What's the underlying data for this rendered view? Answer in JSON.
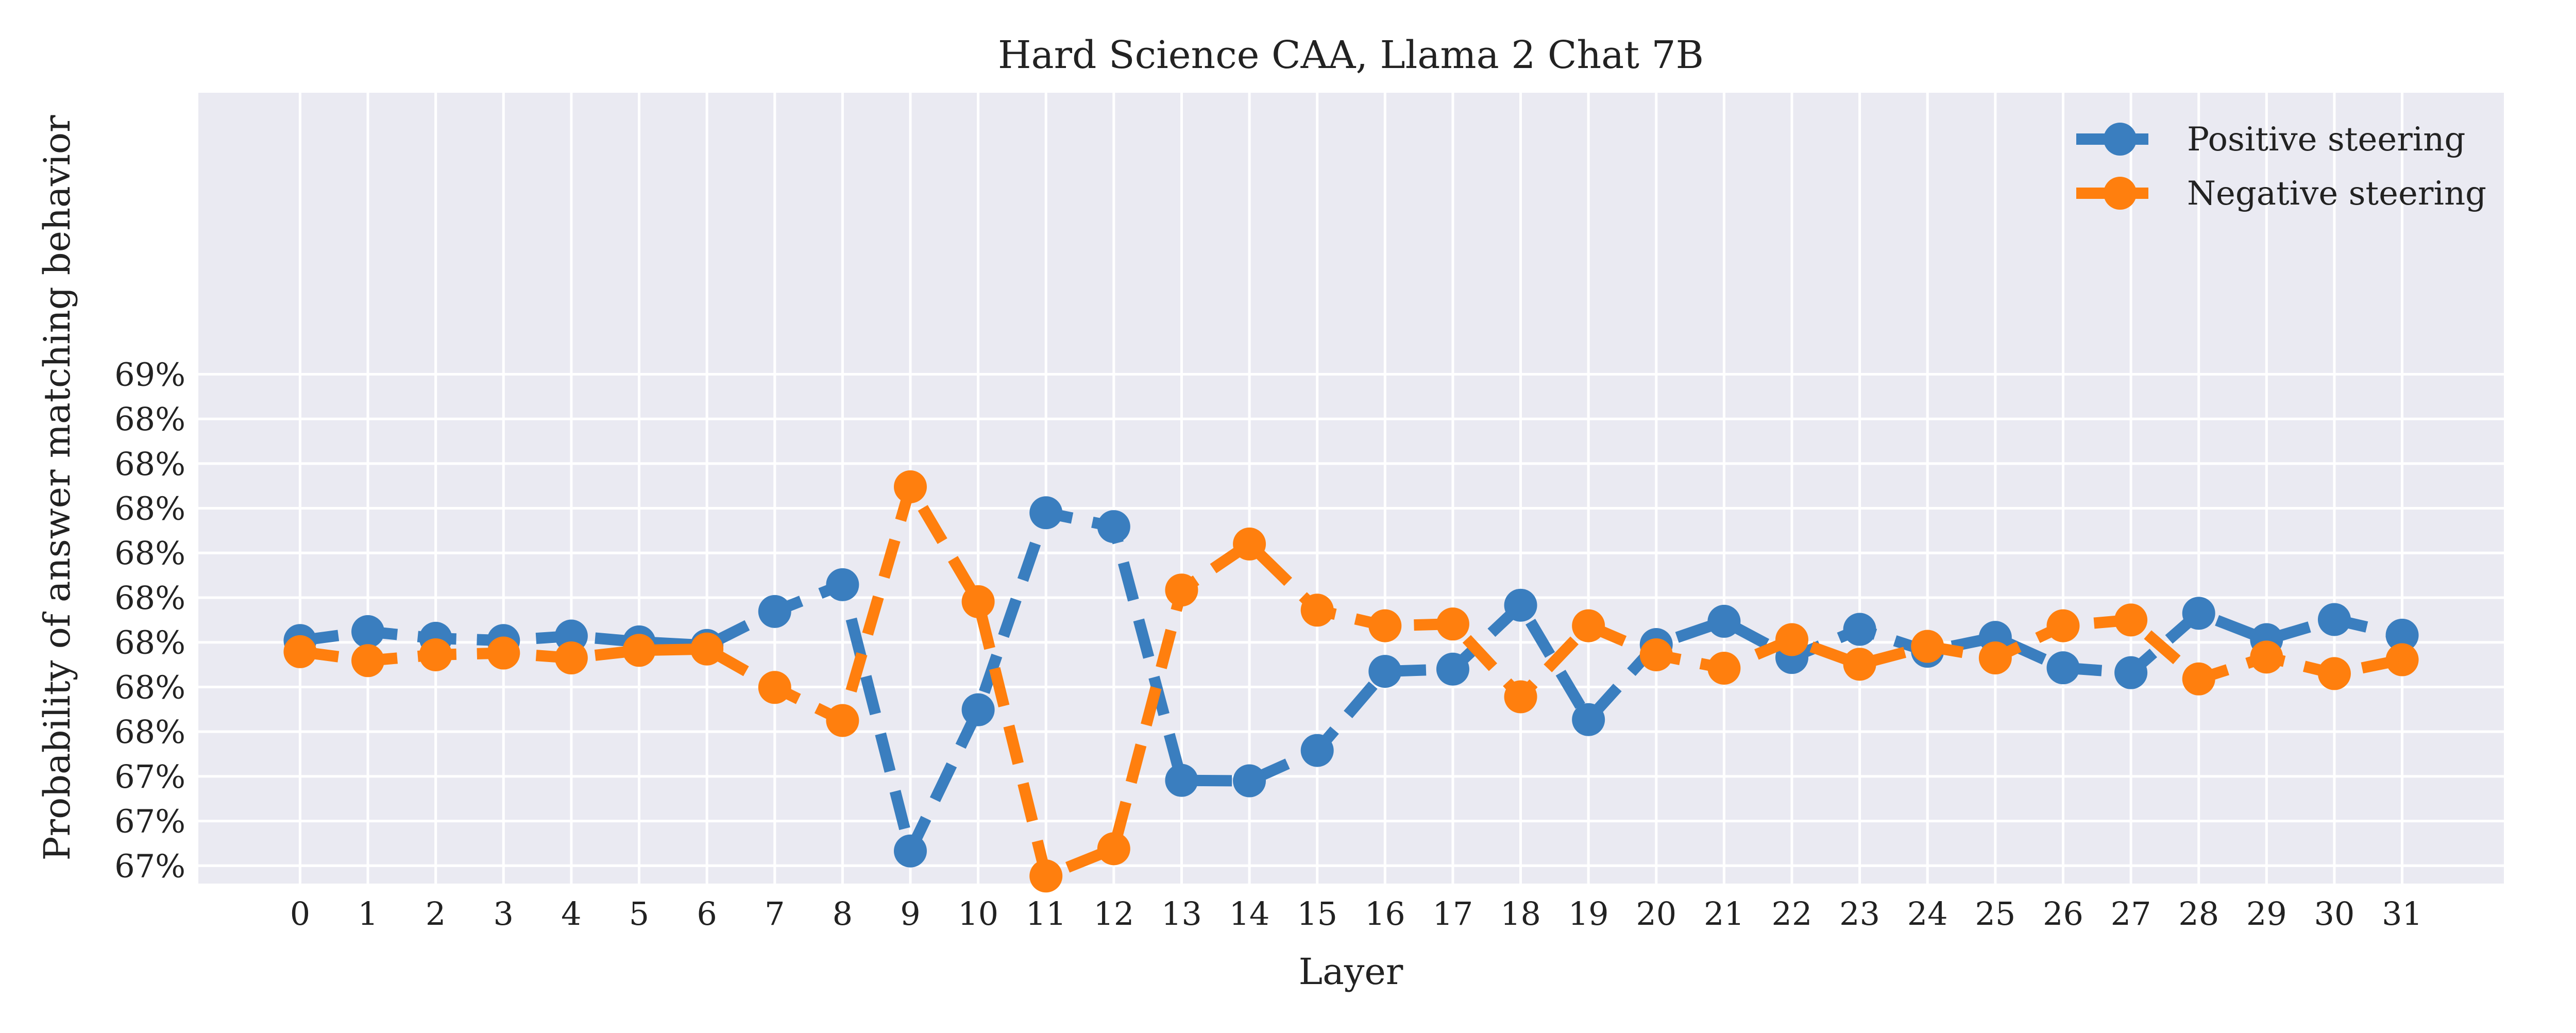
{
  "chart_data": {
    "type": "line",
    "title": "Hard Science CAA, Llama 2 Chat 7B",
    "xlabel": "Layer",
    "ylabel": "Probability of answer matching behavior",
    "x": [
      0,
      1,
      2,
      3,
      4,
      5,
      6,
      7,
      8,
      9,
      10,
      11,
      12,
      13,
      14,
      15,
      16,
      17,
      18,
      19,
      20,
      21,
      22,
      23,
      24,
      25,
      26,
      27,
      28,
      29,
      30,
      31
    ],
    "xticks": [
      "0",
      "1",
      "2",
      "3",
      "4",
      "5",
      "6",
      "7",
      "8",
      "9",
      "10",
      "11",
      "12",
      "13",
      "14",
      "15",
      "16",
      "17",
      "18",
      "19",
      "20",
      "21",
      "22",
      "23",
      "24",
      "25",
      "26",
      "27",
      "28",
      "29",
      "30",
      "31"
    ],
    "ylim": [
      0.6705,
      0.6882
    ],
    "yticks": [
      0.6709,
      0.6719,
      0.6729,
      0.6739,
      0.6749,
      0.6759,
      0.6769,
      0.6779,
      0.6789,
      0.6799,
      0.6809,
      0.6819
    ],
    "ytick_labels": [
      "67%",
      "67%",
      "67%",
      "68%",
      "68%",
      "68%",
      "68%",
      "68%",
      "68%",
      "68%",
      "68%",
      "69%"
    ],
    "grid": true,
    "legend_position": "top-right",
    "series": [
      {
        "name": "Positive steering",
        "color": "#3a7ebf",
        "values": [
          0.67594,
          0.67614,
          0.67599,
          0.67594,
          0.67604,
          0.67591,
          0.67583,
          0.67659,
          0.67719,
          0.67123,
          0.67439,
          0.6788,
          0.67849,
          0.67281,
          0.6728,
          0.67348,
          0.67525,
          0.6753,
          0.67673,
          0.67417,
          0.67585,
          0.67637,
          0.67556,
          0.67619,
          0.6757,
          0.67601,
          0.67533,
          0.67522,
          0.67655,
          0.67596,
          0.67641,
          0.67606
        ]
      },
      {
        "name": "Negative steering",
        "color": "#ff7f0e",
        "values": [
          0.67569,
          0.67549,
          0.67562,
          0.67566,
          0.67555,
          0.67572,
          0.67575,
          0.67489,
          0.67415,
          0.67938,
          0.67681,
          0.67067,
          0.67128,
          0.67707,
          0.6781,
          0.67662,
          0.67627,
          0.67631,
          0.67468,
          0.67627,
          0.67562,
          0.67532,
          0.67596,
          0.67541,
          0.67581,
          0.67555,
          0.67627,
          0.6764,
          0.67508,
          0.67557,
          0.6752,
          0.67551
        ]
      }
    ]
  }
}
